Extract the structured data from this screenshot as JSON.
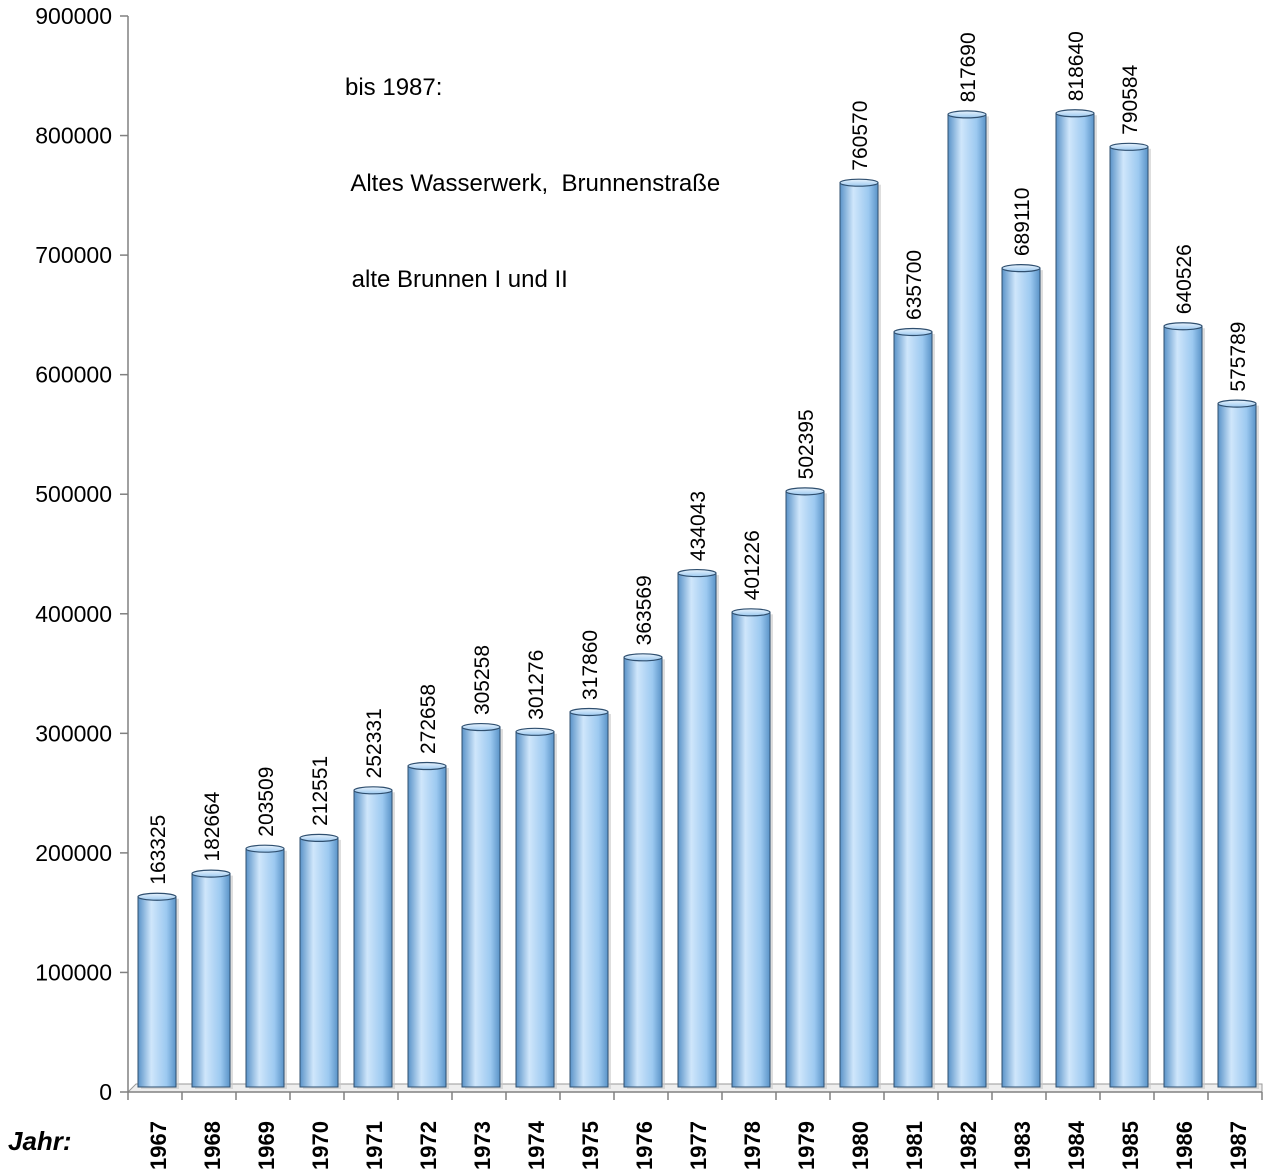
{
  "chart_data": {
    "type": "bar",
    "title": "",
    "xlabel": "Jahr:",
    "ylabel": "",
    "ylim": [
      0,
      900000
    ],
    "yticks": [
      "0",
      "100000",
      "200000",
      "300000",
      "400000",
      "500000",
      "600000",
      "700000",
      "800000",
      "900000"
    ],
    "grid": false,
    "legend": "none",
    "annotation": [
      "bis 1987:",
      " Altes Wasserwerk,  Brunnenstraße",
      " alte Brunnen I und II"
    ],
    "categories": [
      "1967",
      "1968",
      "1969",
      "1970",
      "1971",
      "1972",
      "1973",
      "1974",
      "1975",
      "1976",
      "1977",
      "1978",
      "1979",
      "1980",
      "1981",
      "1982",
      "1983",
      "1984",
      "1985",
      "1986",
      "1987"
    ],
    "values": [
      163325,
      182664,
      203509,
      212551,
      252331,
      272658,
      305258,
      301276,
      317860,
      363569,
      434043,
      401226,
      502395,
      760570,
      635700,
      817690,
      689110,
      818640,
      790584,
      640526,
      575789
    ],
    "colors": {
      "bar_light": "#cfe6fb",
      "bar_mid": "#9cc9f0",
      "bar_dark": "#5a93c8",
      "bar_edge": "#2f4f6f"
    }
  }
}
